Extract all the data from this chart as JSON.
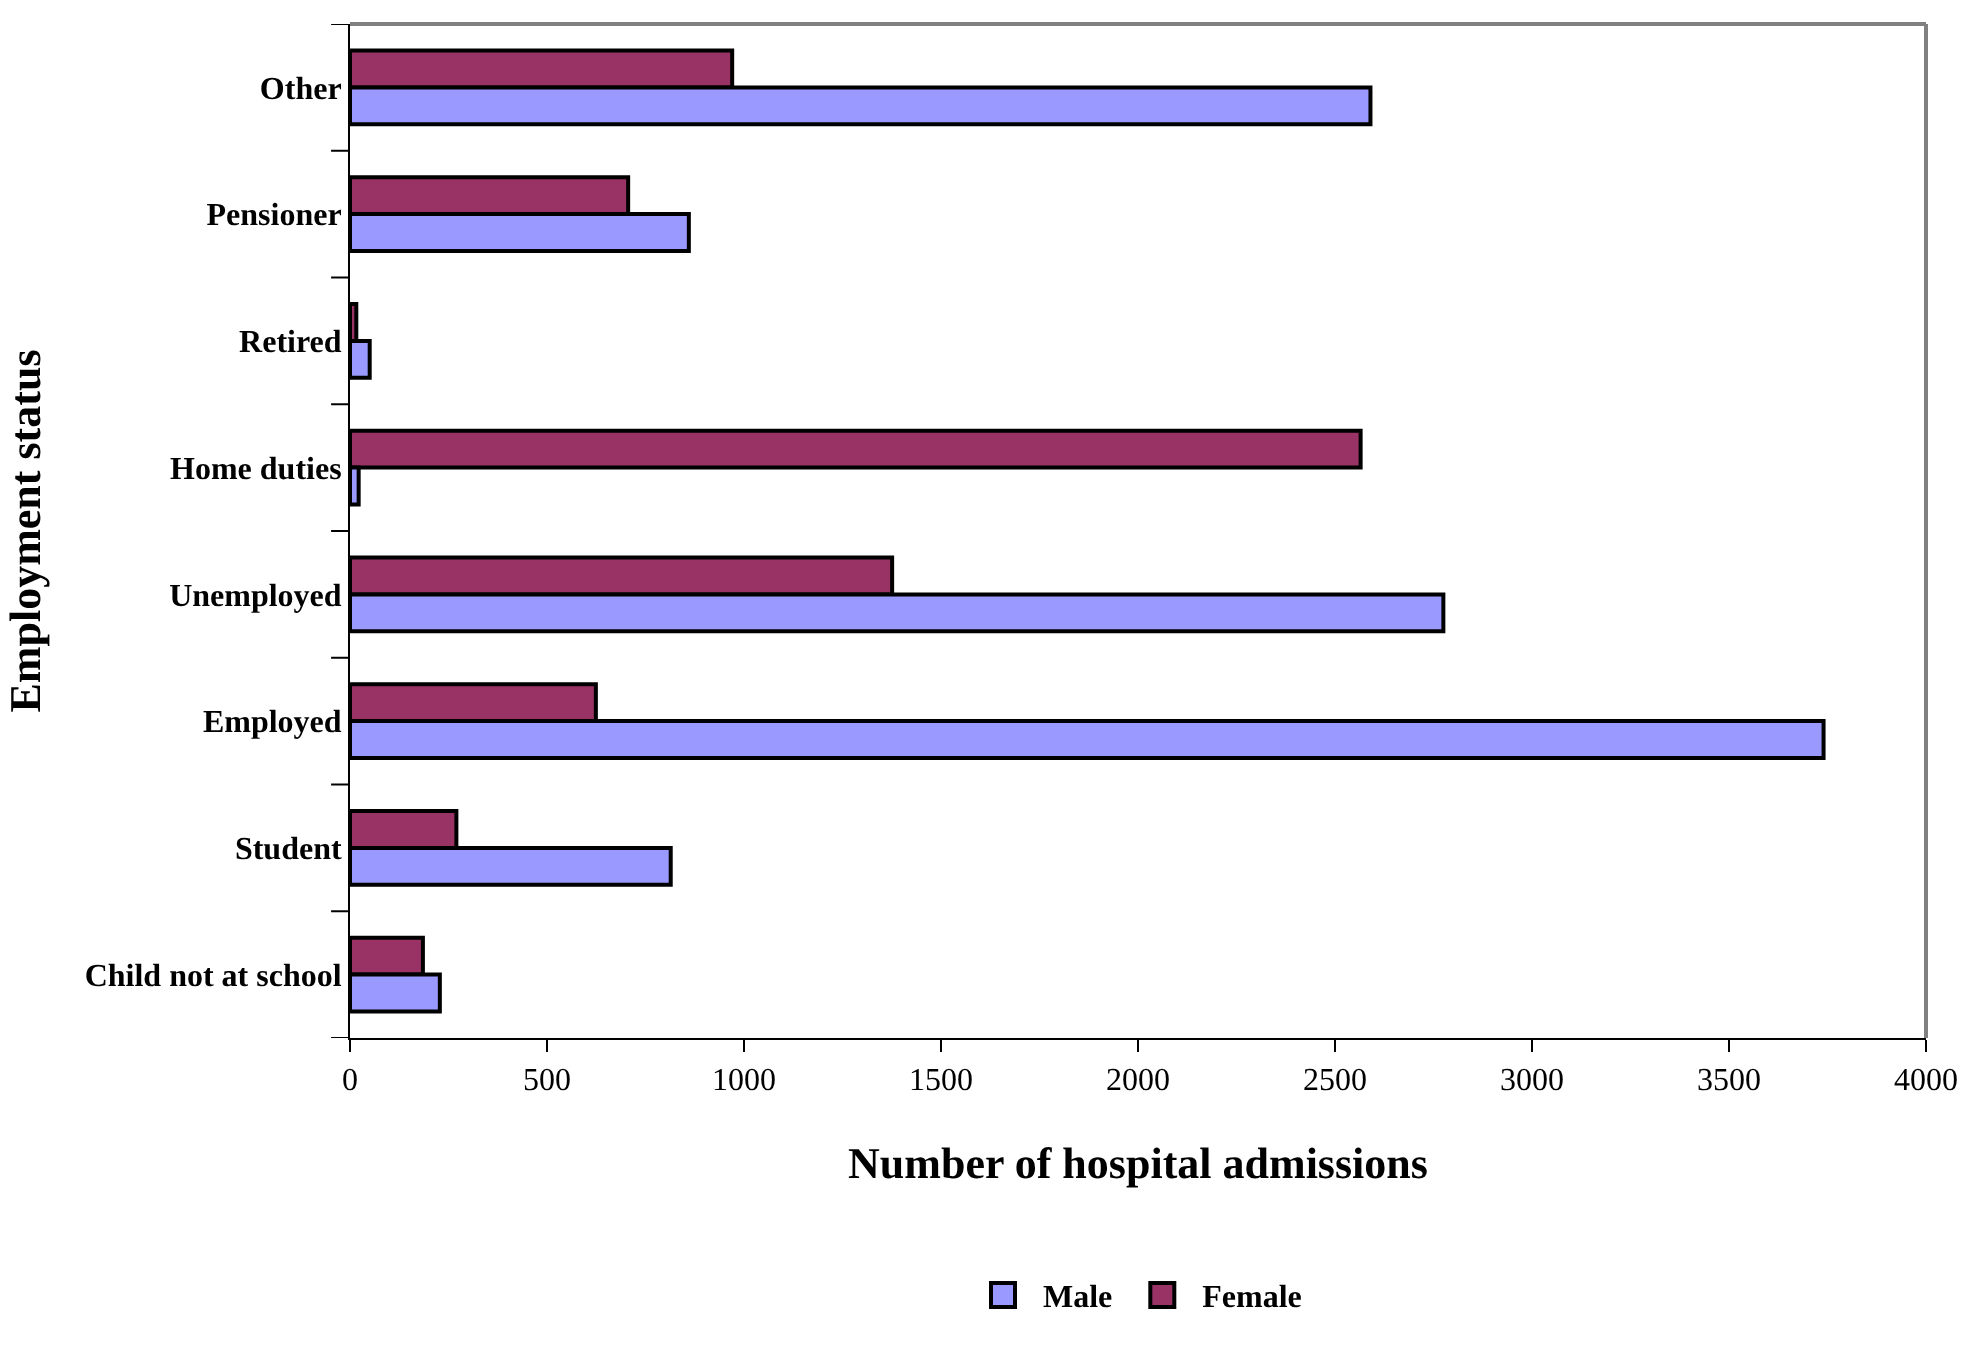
{
  "chart_data": {
    "type": "bar",
    "orientation": "horizontal",
    "xlabel": "Number of hospital admissions",
    "ylabel": "Employment status",
    "categories": [
      "Other",
      "Pensioner",
      "Retired",
      "Home duties",
      "Unemployed",
      "Employed",
      "Student",
      "Child not at school"
    ],
    "series": [
      {
        "name": "Male",
        "color": "#9999ff",
        "values": [
          2590,
          860,
          50,
          22,
          2775,
          3740,
          814,
          228
        ]
      },
      {
        "name": "Female",
        "color": "#993366",
        "values": [
          970,
          706,
          16,
          2565,
          1376,
          624,
          270,
          185
        ]
      }
    ],
    "xlim": [
      0,
      4000
    ],
    "xticks": [
      0,
      500,
      1000,
      1500,
      2000,
      2500,
      3000,
      3500,
      4000
    ],
    "legend": "bottom"
  }
}
